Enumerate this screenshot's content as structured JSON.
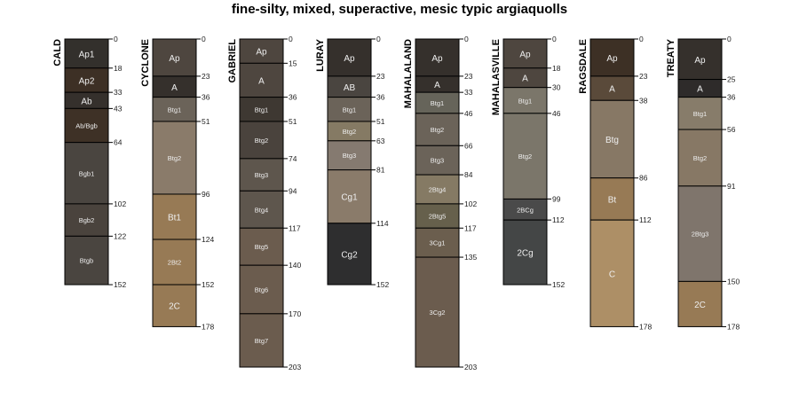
{
  "chart_data": {
    "type": "soil-profile",
    "title": "fine-silty, mixed, superactive, mesic typic argiaquolls",
    "depth_unit": "cm",
    "depth_range": [
      0,
      203
    ],
    "profiles": [
      {
        "name": "CALD",
        "horizons": [
          {
            "name": "Ap1",
            "top": 0,
            "bottom": 18,
            "color": "#33302c"
          },
          {
            "name": "Ap2",
            "top": 18,
            "bottom": 33,
            "color": "#3d3025"
          },
          {
            "name": "Ab",
            "top": 33,
            "bottom": 43,
            "color": "#35302c"
          },
          {
            "name": "Ab/Bgb",
            "top": 43,
            "bottom": 64,
            "color": "#3e3126"
          },
          {
            "name": "Bgb1",
            "top": 64,
            "bottom": 102,
            "color": "#4a4540"
          },
          {
            "name": "Bgb2",
            "top": 102,
            "bottom": 122,
            "color": "#4a433d"
          },
          {
            "name": "Btgb",
            "top": 122,
            "bottom": 152,
            "color": "#4a4540"
          }
        ]
      },
      {
        "name": "CYCLONE",
        "horizons": [
          {
            "name": "Ap",
            "top": 0,
            "bottom": 23,
            "color": "#4e463f"
          },
          {
            "name": "A",
            "top": 23,
            "bottom": 36,
            "color": "#35302c"
          },
          {
            "name": "Btg1",
            "top": 36,
            "bottom": 51,
            "color": "#6b6359"
          },
          {
            "name": "Btg2",
            "top": 51,
            "bottom": 96,
            "color": "#8a7b6a"
          },
          {
            "name": "Bt1",
            "top": 96,
            "bottom": 124,
            "color": "#977a55"
          },
          {
            "name": "2Bt2",
            "top": 124,
            "bottom": 152,
            "color": "#977a55"
          },
          {
            "name": "2C",
            "top": 152,
            "bottom": 178,
            "color": "#977a55"
          }
        ]
      },
      {
        "name": "GABRIEL",
        "horizons": [
          {
            "name": "Ap",
            "top": 0,
            "bottom": 15,
            "color": "#4e463f"
          },
          {
            "name": "A",
            "top": 15,
            "bottom": 36,
            "color": "#4e463f"
          },
          {
            "name": "Btg1",
            "top": 36,
            "bottom": 51,
            "color": "#3e3832"
          },
          {
            "name": "Btg2",
            "top": 51,
            "bottom": 74,
            "color": "#4a433d"
          },
          {
            "name": "Btg3",
            "top": 74,
            "bottom": 94,
            "color": "#5e564d"
          },
          {
            "name": "Btg4",
            "top": 94,
            "bottom": 117,
            "color": "#5e564d"
          },
          {
            "name": "Btg5",
            "top": 117,
            "bottom": 140,
            "color": "#6b5c4e"
          },
          {
            "name": "Btg6",
            "top": 140,
            "bottom": 170,
            "color": "#6b5c4e"
          },
          {
            "name": "Btg7",
            "top": 170,
            "bottom": 203,
            "color": "#6b5c4e"
          }
        ]
      },
      {
        "name": "LURAY",
        "horizons": [
          {
            "name": "Ap",
            "top": 0,
            "bottom": 23,
            "color": "#35302c"
          },
          {
            "name": "AB",
            "top": 23,
            "bottom": 36,
            "color": "#4a4540"
          },
          {
            "name": "Btg1",
            "top": 36,
            "bottom": 51,
            "color": "#6b6359"
          },
          {
            "name": "Btg2",
            "top": 51,
            "bottom": 63,
            "color": "#857a64"
          },
          {
            "name": "Btg3",
            "top": 63,
            "bottom": 81,
            "color": "#857a70"
          },
          {
            "name": "Cg1",
            "top": 81,
            "bottom": 114,
            "color": "#8a7b6a"
          },
          {
            "name": "Cg2",
            "top": 114,
            "bottom": 152,
            "color": "#2e2e2f"
          }
        ]
      },
      {
        "name": "MAHALALAND",
        "horizons": [
          {
            "name": "Ap",
            "top": 0,
            "bottom": 23,
            "color": "#35302c"
          },
          {
            "name": "A",
            "top": 23,
            "bottom": 33,
            "color": "#35302c"
          },
          {
            "name": "Btg1",
            "top": 33,
            "bottom": 46,
            "color": "#66645a"
          },
          {
            "name": "Btg2",
            "top": 46,
            "bottom": 66,
            "color": "#6b6359"
          },
          {
            "name": "Btg3",
            "top": 66,
            "bottom": 84,
            "color": "#6b6359"
          },
          {
            "name": "2Btg4",
            "top": 84,
            "bottom": 102,
            "color": "#857a64"
          },
          {
            "name": "2Btg5",
            "top": 102,
            "bottom": 117,
            "color": "#66604c"
          },
          {
            "name": "3Cg1",
            "top": 117,
            "bottom": 135,
            "color": "#6b5e4e"
          },
          {
            "name": "3Cg2",
            "top": 135,
            "bottom": 203,
            "color": "#6b5c4e"
          }
        ]
      },
      {
        "name": "MAHALASVILLE",
        "horizons": [
          {
            "name": "Ap",
            "top": 0,
            "bottom": 18,
            "color": "#4e463f"
          },
          {
            "name": "A",
            "top": 18,
            "bottom": 30,
            "color": "#4e463f"
          },
          {
            "name": "Btg1",
            "top": 30,
            "bottom": 46,
            "color": "#7b766a"
          },
          {
            "name": "Btg2",
            "top": 46,
            "bottom": 99,
            "color": "#7b766a"
          },
          {
            "name": "2BCg",
            "top": 99,
            "bottom": 112,
            "color": "#4a4a4a"
          },
          {
            "name": "2Cg",
            "top": 112,
            "bottom": 152,
            "color": "#444646"
          }
        ]
      },
      {
        "name": "RAGSDALE",
        "horizons": [
          {
            "name": "Ap",
            "top": 0,
            "bottom": 23,
            "color": "#3d3025"
          },
          {
            "name": "A",
            "top": 23,
            "bottom": 38,
            "color": "#5a4a3a"
          },
          {
            "name": "Btg",
            "top": 38,
            "bottom": 86,
            "color": "#877865"
          },
          {
            "name": "Bt",
            "top": 86,
            "bottom": 112,
            "color": "#977a55"
          },
          {
            "name": "C",
            "top": 112,
            "bottom": 178,
            "color": "#ad8f66"
          }
        ]
      },
      {
        "name": "TREATY",
        "horizons": [
          {
            "name": "Ap",
            "top": 0,
            "bottom": 25,
            "color": "#35302c"
          },
          {
            "name": "A",
            "top": 25,
            "bottom": 36,
            "color": "#2e2b2a"
          },
          {
            "name": "Btg1",
            "top": 36,
            "bottom": 56,
            "color": "#877c6a"
          },
          {
            "name": "Btg2",
            "top": 56,
            "bottom": 91,
            "color": "#877865"
          },
          {
            "name": "2Btg3",
            "top": 91,
            "bottom": 150,
            "color": "#7f756c"
          },
          {
            "name": "2C",
            "top": 150,
            "bottom": 178,
            "color": "#977a55"
          }
        ]
      }
    ]
  }
}
